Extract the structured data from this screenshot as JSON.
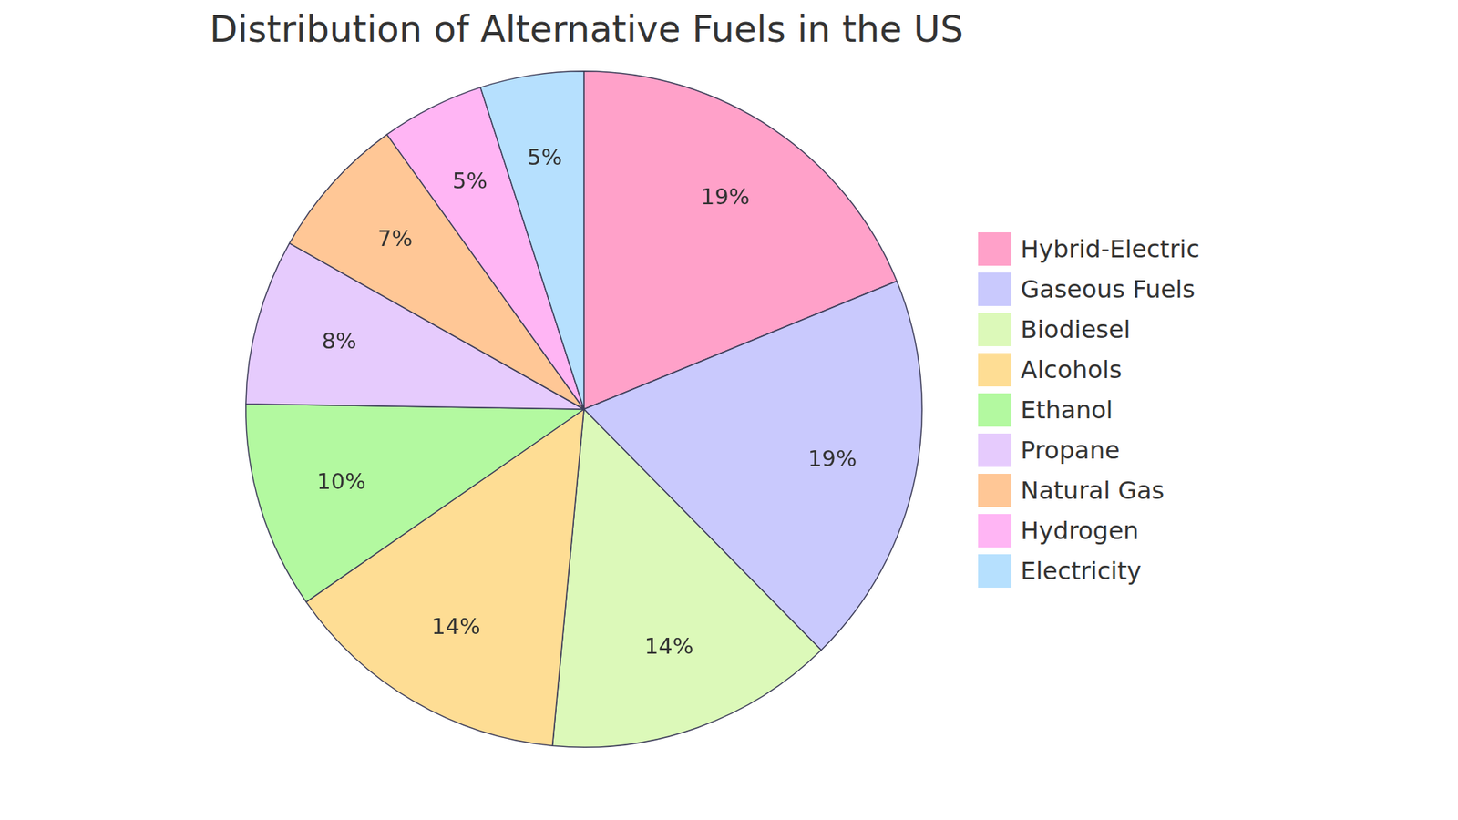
{
  "chart_data": {
    "type": "pie",
    "title": "Distribution of Alternative Fuels in the US",
    "categories": [
      "Hybrid-Electric",
      "Gaseous Fuels",
      "Biodiesel",
      "Alcohols",
      "Ethanol",
      "Propane",
      "Natural Gas",
      "Hydrogen",
      "Electricity"
    ],
    "values": [
      19,
      19,
      14,
      14,
      10,
      8,
      7,
      5,
      5
    ],
    "value_labels": [
      "19%",
      "19%",
      "14%",
      "14%",
      "10%",
      "8%",
      "7%",
      "5%",
      "5%"
    ],
    "colors": [
      "#ffa1c9",
      "#c9c9fd",
      "#dcf9b9",
      "#fedd94",
      "#b3f9a0",
      "#e6cbfd",
      "#ffc796",
      "#ffb5f4",
      "#b6e0fe"
    ],
    "data_labels": true,
    "legend": "right"
  }
}
